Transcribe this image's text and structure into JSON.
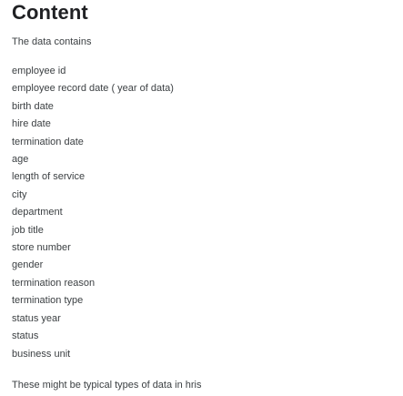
{
  "content": {
    "title": "Content",
    "intro": "The data contains",
    "fields": [
      "employee id",
      "employee record date ( year of data)",
      "birth date",
      "hire date",
      "termination date",
      "age",
      "length of service",
      "city",
      "department",
      "job title",
      "store number",
      "gender",
      "termination reason",
      "termination type",
      "status year",
      "status",
      "business unit"
    ],
    "outro": "These might be typical types of data in hris"
  }
}
